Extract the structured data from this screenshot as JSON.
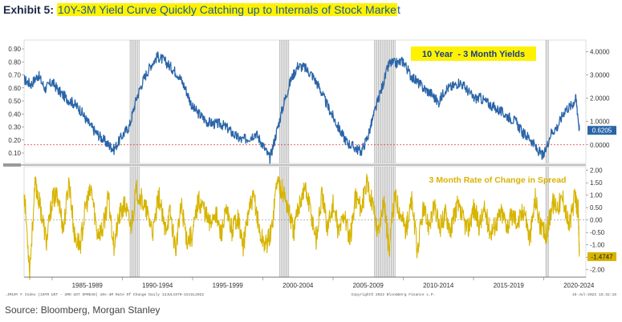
{
  "header": {
    "exhibit_label": "Exhibit 5:",
    "title_highlight": "10Y-3M Yield Curve Quickly Catching up to Internals of Stock Marke",
    "title_tail": "t"
  },
  "source": "Source: Bloomberg, Morgan Stanley",
  "footer": {
    "left": ".JM10Y F Index (10YR UST - 3MO UST SPREAD) 10s-3M Rate Of Change Daily 13JUL1970-15JUL2022",
    "center": "Copyright© 2022 Bloomberg Finance L.P.",
    "right": "15-Jul-2022 15:32:18"
  },
  "colors": {
    "spread_line": "#2a65a8",
    "roc_line": "#d7b400",
    "zero_line": "#e03030",
    "recession_shade": "#b8b8b8",
    "label_highlight": "#fff200",
    "roc_label": "#d9b300"
  },
  "chart_data": [
    {
      "type": "line",
      "title": "10 Year  - 3 Month Yields",
      "x_range": [
        1983,
        2023
      ],
      "x_tick_labels": [
        "1985-1989",
        "1990-1994",
        "1995-1999",
        "2000-2004",
        "2005-2009",
        "2010-2014",
        "2015-2019",
        "2020-2024"
      ],
      "y_left_ticks": [
        "0.90",
        "0.80",
        "0.70",
        "0.60",
        "0.50",
        "0.40",
        "0.30",
        "0.20",
        "0.10"
      ],
      "y_right_ticks": [
        "4.0000",
        "3.0000",
        "2.0000",
        "1.0000",
        "0.0000"
      ],
      "y_right_range": [
        -0.8,
        4.5
      ],
      "last_value_label": "0.6205",
      "last_value": 0.6205,
      "recession_bands": [
        [
          1990.55,
          1991.2
        ],
        [
          2001.2,
          2001.9
        ],
        [
          2007.95,
          2009.5
        ],
        [
          2020.15,
          2020.35
        ]
      ],
      "series": [
        {
          "x": [
            1983.0,
            1983.5,
            1984.0,
            1984.5,
            1985.0,
            1985.5,
            1986.0,
            1986.5,
            1987.0,
            1987.5,
            1988.0,
            1988.5,
            1989.0,
            1989.4,
            1990.0,
            1990.5,
            1991.0,
            1991.5,
            1992.0,
            1992.5,
            1993.0,
            1993.5,
            1994.0,
            1994.5,
            1995.0,
            1995.5,
            1996.0,
            1996.5,
            1997.0,
            1997.5,
            1998.0,
            1998.5,
            1999.0,
            1999.5,
            2000.0,
            2000.5,
            2001.0,
            2001.5,
            2002.0,
            2002.5,
            2003.0,
            2003.5,
            2004.0,
            2004.5,
            2005.0,
            2005.5,
            2006.0,
            2006.5,
            2007.0,
            2007.5,
            2008.0,
            2008.5,
            2009.0,
            2009.5,
            2010.0,
            2010.5,
            2011.0,
            2011.5,
            2012.0,
            2012.5,
            2013.0,
            2013.5,
            2014.0,
            2014.5,
            2015.0,
            2015.5,
            2016.0,
            2016.5,
            2017.0,
            2017.5,
            2018.0,
            2018.5,
            2019.0,
            2019.5,
            2020.0,
            2020.5,
            2021.0,
            2021.5,
            2022.0,
            2022.3,
            2022.54
          ],
          "y": [
            2.8,
            2.6,
            3.0,
            2.4,
            2.7,
            2.3,
            2.0,
            1.8,
            1.5,
            1.0,
            0.6,
            0.3,
            0.0,
            -0.2,
            0.4,
            0.8,
            2.0,
            2.8,
            3.4,
            3.8,
            3.6,
            3.3,
            3.0,
            2.4,
            1.6,
            1.3,
            1.0,
            0.9,
            0.9,
            0.7,
            0.4,
            0.2,
            0.3,
            0.5,
            0.0,
            -0.6,
            0.6,
            1.8,
            2.8,
            3.4,
            3.3,
            3.0,
            2.5,
            1.8,
            1.2,
            0.6,
            0.1,
            -0.1,
            -0.3,
            0.4,
            1.5,
            2.5,
            3.5,
            3.5,
            3.6,
            3.0,
            2.7,
            2.4,
            2.2,
            1.8,
            2.4,
            2.5,
            2.7,
            2.4,
            2.0,
            2.0,
            1.8,
            1.6,
            1.4,
            1.2,
            1.0,
            0.5,
            0.3,
            -0.2,
            -0.5,
            0.5,
            0.8,
            1.5,
            1.7,
            2.0,
            0.6205
          ]
        }
      ]
    },
    {
      "type": "line",
      "title": "3 Month Rate of Change in Spread",
      "x_range": [
        1983,
        2023
      ],
      "y_right_ticks": [
        "2.00",
        "1.50",
        "1.00",
        "0.50",
        "0.00",
        "-0.50",
        "-1.00",
        "-1.50",
        "-2.00"
      ],
      "y_range": [
        -2.3,
        2.15
      ],
      "last_value_label": "-1.4747",
      "last_value": -1.4747,
      "series": [
        {
          "x": [
            1983.0,
            1983.4,
            1983.8,
            1984.2,
            1984.6,
            1985.0,
            1985.4,
            1985.8,
            1986.2,
            1986.6,
            1987.0,
            1987.4,
            1987.8,
            1988.2,
            1988.6,
            1989.0,
            1989.4,
            1989.8,
            1990.2,
            1990.6,
            1991.0,
            1991.4,
            1991.8,
            1992.2,
            1992.6,
            1993.0,
            1993.4,
            1993.8,
            1994.2,
            1994.6,
            1995.0,
            1995.4,
            1995.8,
            1996.2,
            1996.6,
            1997.0,
            1997.4,
            1997.8,
            1998.2,
            1998.6,
            1999.0,
            1999.4,
            1999.8,
            2000.2,
            2000.6,
            2001.0,
            2001.4,
            2001.8,
            2002.2,
            2002.6,
            2003.0,
            2003.4,
            2003.8,
            2004.2,
            2004.6,
            2005.0,
            2005.4,
            2005.8,
            2006.2,
            2006.6,
            2007.0,
            2007.4,
            2007.8,
            2008.2,
            2008.6,
            2009.0,
            2009.4,
            2009.8,
            2010.2,
            2010.6,
            2011.0,
            2011.4,
            2011.8,
            2012.2,
            2012.6,
            2013.0,
            2013.4,
            2013.8,
            2014.2,
            2014.6,
            2015.0,
            2015.4,
            2015.8,
            2016.2,
            2016.6,
            2017.0,
            2017.4,
            2017.8,
            2018.2,
            2018.6,
            2019.0,
            2019.4,
            2019.8,
            2020.2,
            2020.6,
            2021.0,
            2021.4,
            2021.8,
            2022.2,
            2022.45,
            2022.54
          ],
          "y": [
            1.2,
            -2.0,
            1.5,
            0.4,
            -0.9,
            0.8,
            1.0,
            -0.4,
            1.6,
            -0.7,
            -1.0,
            0.6,
            1.2,
            -0.5,
            -0.4,
            0.9,
            -1.0,
            0.2,
            0.6,
            -0.3,
            1.2,
            0.8,
            0.2,
            -0.5,
            1.0,
            -0.4,
            0.3,
            -1.2,
            0.6,
            -0.8,
            -0.6,
            0.8,
            0.5,
            -0.2,
            0.4,
            -0.6,
            0.3,
            -0.4,
            0.2,
            -1.1,
            0.4,
            0.9,
            -0.6,
            -1.0,
            -0.5,
            1.6,
            1.2,
            0.5,
            -0.5,
            0.7,
            1.3,
            0.4,
            -0.8,
            1.0,
            -0.3,
            0.6,
            -0.5,
            0.3,
            -0.9,
            1.0,
            0.5,
            1.4,
            0.8,
            -0.6,
            0.9,
            -1.2,
            1.0,
            0.3,
            -0.4,
            0.8,
            -1.3,
            0.4,
            -0.2,
            0.5,
            -0.3,
            0.3,
            -0.4,
            0.6,
            0.1,
            -0.4,
            0.5,
            -0.2,
            0.4,
            -0.5,
            -0.1,
            0.3,
            -0.2,
            0.2,
            -0.1,
            0.5,
            -0.8,
            0.9,
            -0.4,
            -0.6,
            0.7,
            0.6,
            0.9,
            -0.3,
            0.9,
            0.4,
            -1.4747
          ]
        }
      ]
    }
  ]
}
